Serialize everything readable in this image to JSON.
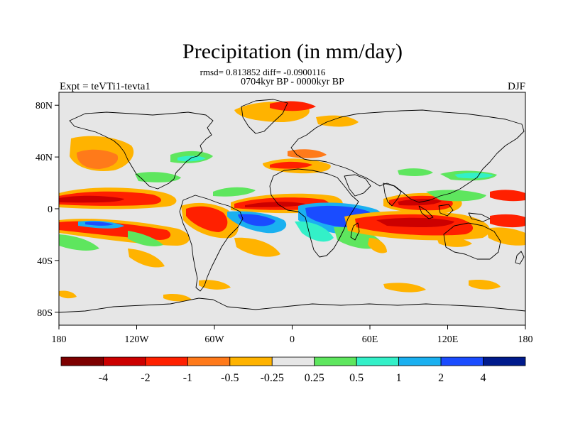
{
  "title": "Precipitation (in mm/day)",
  "stats_line": "rmsd= 0.813852 diff= -0.0900116",
  "period_line": "0704kyr BP - 0000kyr BP",
  "expt_label": "Expt = teVTi1-tevta1",
  "season_label": "DJF",
  "map": {
    "lon_ticks": [
      "180",
      "120W",
      "60W",
      "0",
      "60E",
      "120E",
      "180"
    ],
    "lat_ticks": [
      "80N",
      "40N",
      "0",
      "40S",
      "80S"
    ],
    "lon_range": [
      -180,
      180
    ],
    "lat_range": [
      -90,
      90
    ],
    "background_color": "#e6e6e6",
    "coastline_color": "#000000"
  },
  "colorbar": {
    "colors": [
      "#7d0000",
      "#cc0000",
      "#ff2000",
      "#ff7a1a",
      "#ffb300",
      "#e6e6e6",
      "#5ee65e",
      "#33f0c8",
      "#1ab0f0",
      "#1a4cff",
      "#001a8c"
    ],
    "labels": [
      "-4",
      "-2",
      "-1",
      "-0.5",
      "-0.25",
      "0.25",
      "0.5",
      "1",
      "2",
      "4"
    ]
  }
}
